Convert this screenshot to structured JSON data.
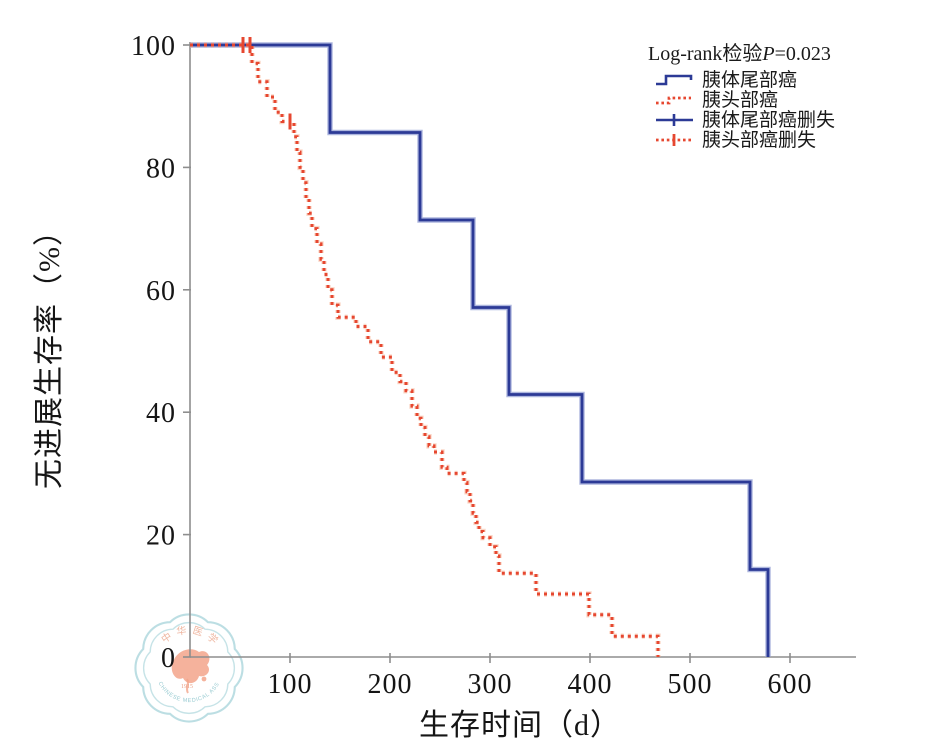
{
  "figure": {
    "background": "#ffffff",
    "description": "Kaplan-Meier progression-free survival curves comparing pancreatic body/tail cancer and pancreatic head cancer"
  },
  "colors": {
    "series_body_tail": "#2c3a96",
    "series_body_tail_halo": "#98a4d6",
    "series_head": "#e64730",
    "series_head_halo": "#f5a987",
    "axis": "#8e8e8e",
    "tick_label": "#151515",
    "watermark_blue": "#b9dde2",
    "watermark_text_blue": "#93c8cf",
    "watermark_orange": "#f2a084"
  },
  "legend": {
    "title_prefix": "Log-rank检验",
    "title_p": "P",
    "title_value": "=0.023",
    "items": [
      {
        "label": "胰体尾部癌",
        "symbol": "step-solid",
        "color": "#2c3a96"
      },
      {
        "label": "胰头部癌",
        "symbol": "step-dashed",
        "color": "#e64730"
      },
      {
        "label": "胰体尾部癌删失",
        "symbol": "censor-solid",
        "color": "#2c3a96"
      },
      {
        "label": "胰头部癌删失",
        "symbol": "censor-dashed",
        "color": "#e64730"
      }
    ]
  },
  "watermark": {
    "top_text": "中华医学会",
    "bottom_text": "CHINESE MEDICAL ASSOCIATION",
    "year": "1915"
  },
  "chart_data": {
    "type": "line",
    "subtype": "kaplan_meier_step",
    "title": "",
    "xlabel": "生存时间（d）",
    "ylabel": "无进展生存率（%）",
    "xlim": [
      0,
      660
    ],
    "ylim": [
      0,
      100
    ],
    "xticks": [
      100,
      200,
      300,
      400,
      500,
      600
    ],
    "yticks": [
      0,
      20,
      40,
      60,
      80,
      100
    ],
    "grid": false,
    "legend_position": "top-right",
    "annotation": "Log-rank检验P=0.023",
    "series": [
      {
        "name": "胰体尾部癌",
        "line_style": "solid",
        "color": "#2c3a96",
        "halo_color": "#98a4d6",
        "start": [
          0,
          100
        ],
        "steps": [
          [
            140,
            85.7
          ],
          [
            230,
            71.4
          ],
          [
            283,
            57.1
          ],
          [
            319,
            42.9
          ],
          [
            392,
            28.6
          ],
          [
            560,
            14.3
          ],
          [
            578,
            0
          ]
        ]
      },
      {
        "name": "胰头部癌",
        "line_style": "dashed",
        "color": "#e64730",
        "halo_color": "#f5a987",
        "start": [
          0,
          100
        ],
        "steps": [
          [
            62,
            97
          ],
          [
            68,
            94
          ],
          [
            77,
            91.5
          ],
          [
            85,
            89
          ],
          [
            92,
            87.5
          ],
          [
            104,
            85
          ],
          [
            107,
            82.5
          ],
          [
            110,
            80
          ],
          [
            113,
            77.5
          ],
          [
            116,
            75
          ],
          [
            119,
            72.5
          ],
          [
            122,
            70
          ],
          [
            127,
            67.5
          ],
          [
            131,
            65
          ],
          [
            134,
            62.5
          ],
          [
            138,
            60
          ],
          [
            142,
            57.5
          ],
          [
            148,
            55.5
          ],
          [
            166,
            54
          ],
          [
            178,
            51.5
          ],
          [
            191,
            49
          ],
          [
            202,
            46.5
          ],
          [
            210,
            45
          ],
          [
            216,
            43.5
          ],
          [
            222,
            41
          ],
          [
            227,
            39
          ],
          [
            231,
            37.5
          ],
          [
            235,
            36
          ],
          [
            239,
            34.5
          ],
          [
            244,
            33.5
          ],
          [
            252,
            31
          ],
          [
            257,
            30
          ],
          [
            274,
            28.5
          ],
          [
            277,
            27
          ],
          [
            280,
            25.5
          ],
          [
            283,
            23.5
          ],
          [
            286,
            22
          ],
          [
            289,
            20.5
          ],
          [
            293,
            19.5
          ],
          [
            300,
            18
          ],
          [
            306,
            16.5
          ],
          [
            309,
            13.7
          ],
          [
            346,
            10.3
          ],
          [
            399,
            6.9
          ],
          [
            422,
            3.4
          ],
          [
            468,
            0
          ]
        ]
      }
    ],
    "censor_marks": [
      {
        "series": "胰体尾部癌",
        "color": "#2c3a96",
        "points": []
      },
      {
        "series": "胰头部癌",
        "color": "#e64730",
        "points": [
          [
            53,
            100
          ],
          [
            60,
            100
          ],
          [
            100,
            87.5
          ]
        ]
      }
    ]
  }
}
